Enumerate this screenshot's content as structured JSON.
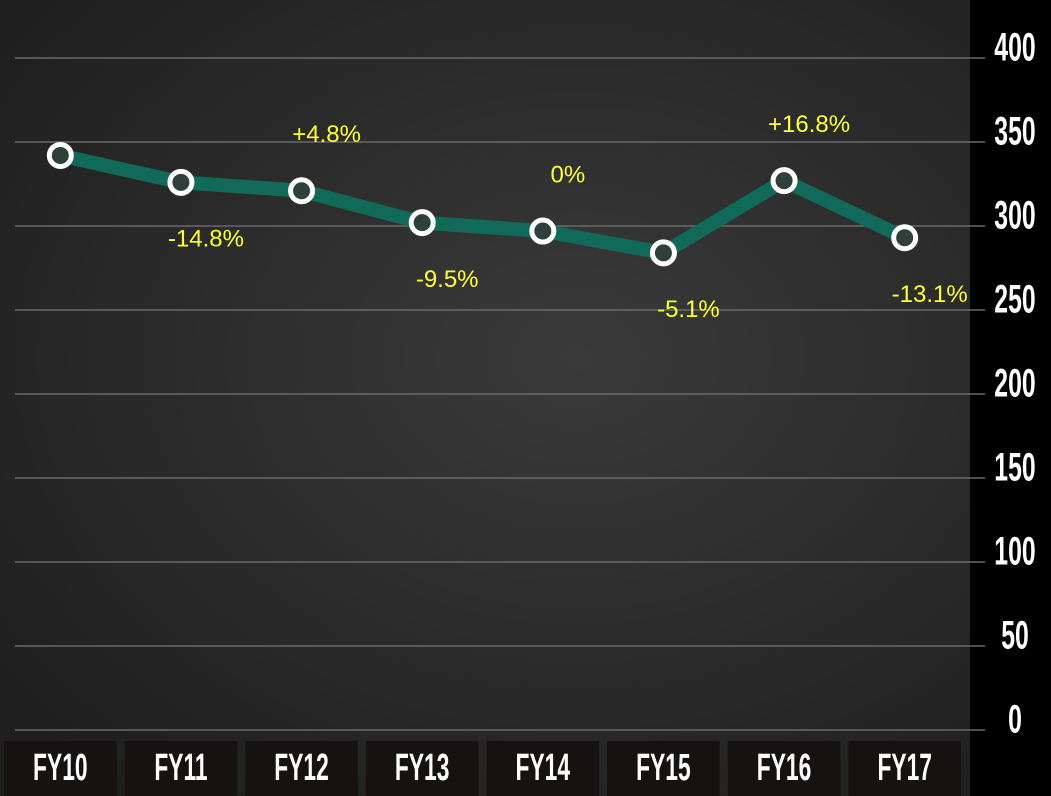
{
  "chart_data": {
    "type": "line",
    "categories": [
      "FY10",
      "FY11",
      "FY12",
      "FY13",
      "FY14",
      "FY15",
      "FY16",
      "FY17"
    ],
    "series": [
      {
        "color": "#11695a",
        "values": [
          342,
          326,
          321,
          302,
          297,
          284,
          327,
          293
        ]
      }
    ],
    "annotations": [
      "-14.8%",
      "+4.8%",
      "-9.5%",
      "0%",
      "-5.1%",
      "+16.8%",
      "-13.1%"
    ],
    "ylim": [
      0,
      400
    ],
    "yticks": [
      0,
      50,
      100,
      150,
      200,
      250,
      300,
      350,
      400
    ],
    "grid": true
  }
}
